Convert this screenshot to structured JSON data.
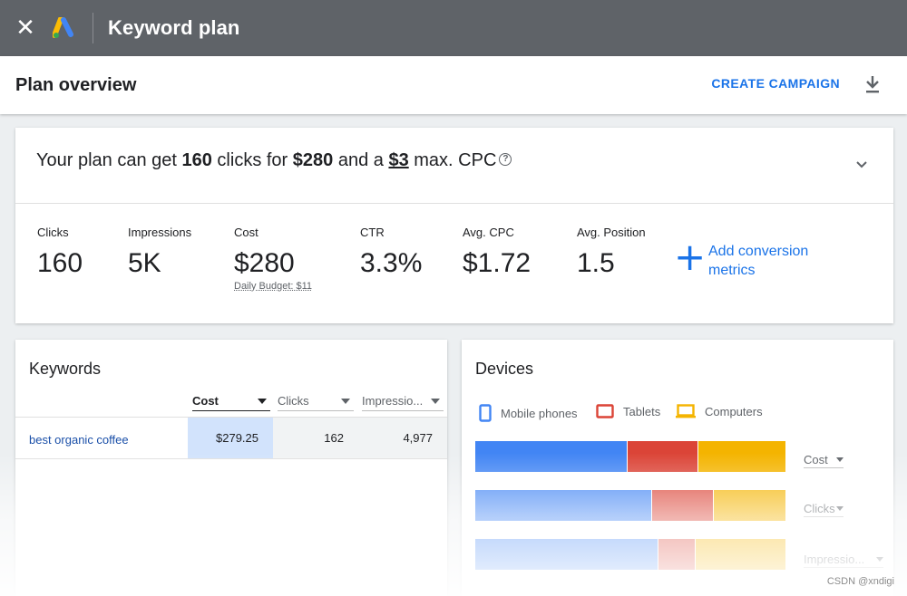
{
  "topbar": {
    "title": "Keyword plan"
  },
  "header": {
    "title": "Plan overview",
    "create_label": "CREATE CAMPAIGN"
  },
  "summary": {
    "text_1": "Your plan can get ",
    "clicks": "160",
    "text_2": " clicks for ",
    "cost": "$280",
    "text_3": " and a ",
    "cpc": "$3",
    "text_4": " max. CPC"
  },
  "metrics": [
    {
      "label": "Clicks",
      "value": "160"
    },
    {
      "label": "Impressions",
      "value": "5K"
    },
    {
      "label": "Cost",
      "value": "$280",
      "sub": "Daily Budget: $11"
    },
    {
      "label": "CTR",
      "value": "3.3%"
    },
    {
      "label": "Avg. CPC",
      "value": "$1.72"
    },
    {
      "label": "Avg. Position",
      "value": "1.5"
    }
  ],
  "add_conversion": {
    "line1": "Add conversion",
    "line2": "metrics"
  },
  "keywords": {
    "title": "Keywords",
    "columns": [
      "Cost",
      "Clicks",
      "Impressio..."
    ],
    "rows": [
      {
        "keyword": "best organic coffee",
        "cost": "$279.25",
        "clicks": "162",
        "impressions": "4,977"
      }
    ]
  },
  "devices": {
    "title": "Devices",
    "legend": [
      "Mobile phones",
      "Tablets",
      "Computers"
    ],
    "colors": {
      "mobile": "#4285f4",
      "tablets": "#db4437",
      "computers": "#f4b400"
    },
    "metrics": [
      {
        "label": "Cost",
        "shares": [
          0.49,
          0.23,
          0.28
        ]
      },
      {
        "label": "Clicks",
        "shares": [
          0.57,
          0.2,
          0.23
        ]
      },
      {
        "label": "Impressio...",
        "shares": [
          0.59,
          0.12,
          0.29
        ]
      }
    ]
  },
  "watermark": "CSDN @xndigi"
}
